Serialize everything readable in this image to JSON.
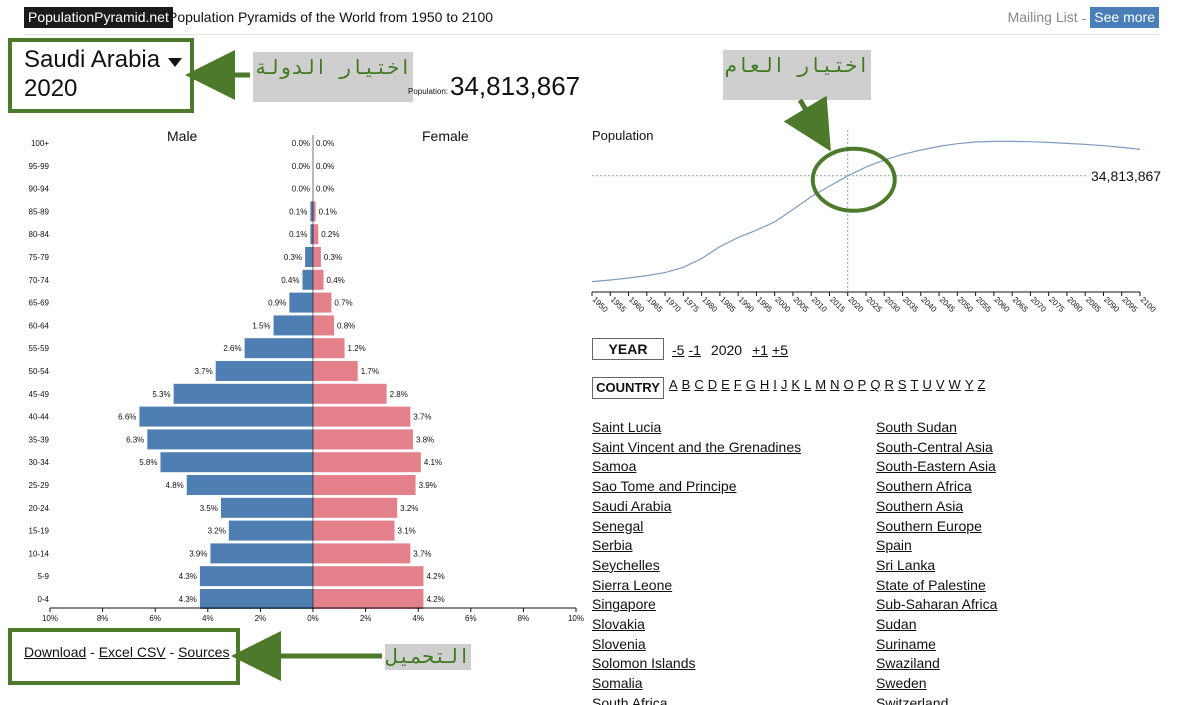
{
  "header": {
    "brand": "PopulationPyramid.net",
    "tagline": "Population Pyramids of the World from 1950 to 2100",
    "mailing_list": "Mailing List",
    "separator": "-",
    "see_more": "See more"
  },
  "selection": {
    "country": "Saudi Arabia",
    "year": "2020"
  },
  "population": {
    "label": "Population:",
    "value": "34,813,867"
  },
  "annotations": {
    "country_select": "اختيار الدولة",
    "year_select": "اختيار العام",
    "download": "التحميل"
  },
  "download": {
    "download": "Download",
    "sep1": "-",
    "excel_csv": "Excel CSV",
    "sep2": "-",
    "sources": "Sources"
  },
  "chart_data": [
    {
      "type": "bar",
      "orientation": "horizontal-diverging",
      "title_left": "Male",
      "title_right": "Female",
      "categories": [
        "100+",
        "95-99",
        "90-94",
        "85-89",
        "80-84",
        "75-79",
        "70-74",
        "65-69",
        "60-64",
        "55-59",
        "50-54",
        "45-49",
        "40-44",
        "35-39",
        "30-34",
        "25-29",
        "20-24",
        "15-19",
        "10-14",
        "5-9",
        "0-4"
      ],
      "series": [
        {
          "name": "Male",
          "color": "#4f7fb2",
          "values": [
            0.0,
            0.0,
            0.0,
            0.1,
            0.1,
            0.3,
            0.4,
            0.9,
            1.5,
            2.6,
            3.7,
            5.3,
            6.6,
            6.3,
            5.8,
            4.8,
            3.5,
            3.2,
            3.9,
            4.3,
            4.3
          ]
        },
        {
          "name": "Female",
          "color": "#e3808a",
          "values": [
            0.0,
            0.0,
            0.0,
            0.1,
            0.2,
            0.3,
            0.4,
            0.7,
            0.8,
            1.2,
            1.7,
            2.8,
            3.7,
            3.8,
            4.1,
            3.9,
            3.2,
            3.1,
            3.7,
            4.2,
            4.2
          ]
        }
      ],
      "x_ticks": [
        "10%",
        "8%",
        "6%",
        "4%",
        "2%",
        "0%",
        "2%",
        "4%",
        "6%",
        "8%",
        "10%"
      ],
      "xlim": [
        -10,
        10
      ],
      "unit": "%"
    },
    {
      "type": "line",
      "title": "Population",
      "x": [
        1950,
        1955,
        1960,
        1965,
        1970,
        1975,
        1980,
        1985,
        1990,
        1995,
        2000,
        2005,
        2010,
        2015,
        2020,
        2025,
        2030,
        2035,
        2040,
        2045,
        2050,
        2055,
        2060,
        2065,
        2070,
        2075,
        2080,
        2085,
        2090,
        2095,
        2100
      ],
      "x_ticks": [
        "1950",
        "1955",
        "1960",
        "1965",
        "1970",
        "1975",
        "1980",
        "1985",
        "1990",
        "1995",
        "2000",
        "2005",
        "2010",
        "2015",
        "2020",
        "2025",
        "2030",
        "2035",
        "2040",
        "2045",
        "2050",
        "2055",
        "2060",
        "2065",
        "2070",
        "2075",
        "2080",
        "2085",
        "2090",
        "2095",
        "2100"
      ],
      "series": [
        {
          "color": "#7d9dbf",
          "values": [
            3.1,
            3.6,
            4.2,
            4.9,
            5.8,
            7.4,
            10.0,
            13.6,
            16.3,
            18.5,
            21.0,
            24.7,
            28.5,
            31.7,
            34.8,
            37.4,
            39.5,
            41.2,
            42.5,
            43.6,
            44.4,
            44.9,
            45.1,
            45.1,
            45.0,
            44.8,
            44.5,
            44.2,
            43.8,
            43.3,
            42.7
          ]
        }
      ],
      "ylim": [
        0,
        50
      ],
      "current_year": 2020,
      "current_value_label": "34,813,867"
    }
  ],
  "year_controls": {
    "label": "YEAR",
    "minus5": "-5",
    "minus1": "-1",
    "current": "2020",
    "plus1": "+1",
    "plus5": "+5"
  },
  "country_nav": {
    "label": "COUNTRY",
    "letters": [
      "A",
      "B",
      "C",
      "D",
      "E",
      "F",
      "G",
      "H",
      "I",
      "J",
      "K",
      "L",
      "M",
      "N",
      "O",
      "P",
      "Q",
      "R",
      "S",
      "T",
      "U",
      "V",
      "W",
      "Y",
      "Z"
    ]
  },
  "countries": {
    "col1": [
      "Saint Lucia",
      "Saint Vincent and the Grenadines",
      "Samoa",
      "Sao Tome and Principe",
      "Saudi Arabia",
      "Senegal",
      "Serbia",
      "Seychelles",
      "Sierra Leone",
      "Singapore",
      "Slovakia",
      "Slovenia",
      "Solomon Islands",
      "Somalia",
      "South Africa"
    ],
    "col2": [
      "South Sudan",
      "South-Central Asia",
      "South-Eastern Asia",
      "Southern Africa",
      "Southern Asia",
      "Southern Europe",
      "Spain",
      "Sri Lanka",
      "State of Palestine",
      "Sub-Saharan Africa",
      "Sudan",
      "Suriname",
      "Swaziland",
      "Sweden",
      "Switzerland"
    ]
  }
}
